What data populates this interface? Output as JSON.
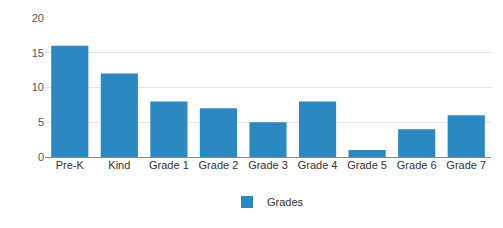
{
  "chart_data": {
    "type": "bar",
    "categories": [
      "Pre-K",
      "Kind",
      "Grade 1",
      "Grade 2",
      "Grade 3",
      "Grade 4",
      "Grade 5",
      "Grade 6",
      "Grade 7"
    ],
    "series": [
      {
        "name": "Grades",
        "color": "#2b88c0",
        "values": [
          16,
          12,
          8,
          7,
          5,
          8,
          1,
          4,
          6
        ]
      }
    ],
    "ylim": [
      0,
      20
    ],
    "yticks": [
      0,
      5,
      10,
      15,
      20
    ],
    "grid": true,
    "legend": "bottom"
  }
}
